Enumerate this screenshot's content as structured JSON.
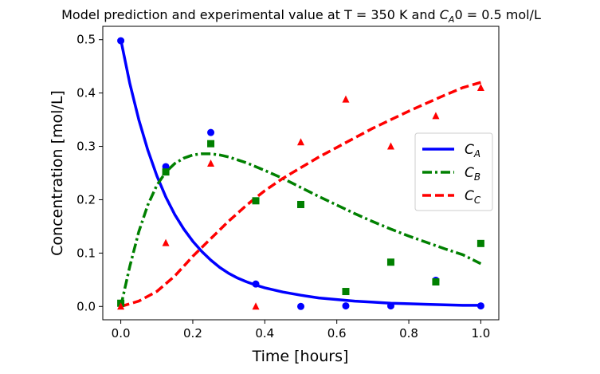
{
  "chart_data": {
    "type": "line",
    "title": "Model prediction and experimental value at T = 350 K and C_A0 = 0.5 mol/L",
    "title_parts": {
      "prefix": "Model prediction and experimental value at T = 350 K and ",
      "symbol": "C",
      "subscript": "A",
      "suffix": "0 = 0.5 mol/L"
    },
    "xlabel": "Time [hours]",
    "ylabel": "Concentration [mol/L]",
    "xlim": [
      -0.05,
      1.05
    ],
    "ylim": [
      -0.025,
      0.525
    ],
    "xticks": [
      0.0,
      0.2,
      0.4,
      0.6,
      0.8,
      1.0
    ],
    "xtick_labels": [
      "0.0",
      "0.2",
      "0.4",
      "0.6",
      "0.8",
      "1.0"
    ],
    "yticks": [
      0.0,
      0.1,
      0.2,
      0.3,
      0.4,
      0.5
    ],
    "ytick_labels": [
      "0.0",
      "0.1",
      "0.2",
      "0.3",
      "0.4",
      "0.5"
    ],
    "grid": false,
    "legend_position": "center-right",
    "model_series": [
      {
        "name": "C_A",
        "symbol": "C",
        "subscript": "A",
        "color": "#0000ff",
        "dash": "solid",
        "x": [
          0.0,
          0.025,
          0.05,
          0.075,
          0.1,
          0.125,
          0.15,
          0.175,
          0.2,
          0.225,
          0.25,
          0.275,
          0.3,
          0.325,
          0.35,
          0.375,
          0.4,
          0.45,
          0.5,
          0.55,
          0.6,
          0.65,
          0.7,
          0.75,
          0.8,
          0.85,
          0.9,
          0.95,
          1.0
        ],
        "y": [
          0.5,
          0.418,
          0.35,
          0.293,
          0.245,
          0.205,
          0.172,
          0.145,
          0.122,
          0.103,
          0.087,
          0.073,
          0.062,
          0.053,
          0.046,
          0.04,
          0.035,
          0.027,
          0.021,
          0.016,
          0.013,
          0.01,
          0.008,
          0.006,
          0.005,
          0.004,
          0.003,
          0.002,
          0.002
        ]
      },
      {
        "name": "C_B",
        "symbol": "C",
        "subscript": "B",
        "color": "#008000",
        "dash": "dashdot",
        "x": [
          0.0,
          0.025,
          0.05,
          0.075,
          0.1,
          0.125,
          0.15,
          0.175,
          0.2,
          0.225,
          0.25,
          0.275,
          0.3,
          0.35,
          0.4,
          0.45,
          0.5,
          0.55,
          0.6,
          0.65,
          0.7,
          0.75,
          0.8,
          0.85,
          0.9,
          0.95,
          1.0
        ],
        "y": [
          0.0,
          0.075,
          0.14,
          0.19,
          0.227,
          0.252,
          0.268,
          0.278,
          0.284,
          0.286,
          0.286,
          0.284,
          0.28,
          0.269,
          0.255,
          0.24,
          0.223,
          0.206,
          0.19,
          0.174,
          0.159,
          0.145,
          0.132,
          0.12,
          0.108,
          0.097,
          0.08
        ]
      },
      {
        "name": "C_C",
        "symbol": "C",
        "subscript": "C",
        "color": "#ff0000",
        "dash": "dashed",
        "x": [
          0.0,
          0.05,
          0.1,
          0.15,
          0.2,
          0.25,
          0.3,
          0.35,
          0.4,
          0.45,
          0.5,
          0.55,
          0.6,
          0.65,
          0.7,
          0.75,
          0.8,
          0.85,
          0.9,
          0.95,
          1.0
        ],
        "y": [
          0.0,
          0.01,
          0.028,
          0.057,
          0.094,
          0.127,
          0.16,
          0.19,
          0.217,
          0.24,
          0.26,
          0.28,
          0.298,
          0.316,
          0.334,
          0.35,
          0.366,
          0.381,
          0.396,
          0.41,
          0.42
        ]
      }
    ],
    "experimental_series": [
      {
        "name": "C_A",
        "marker": "circle",
        "color": "#0000ff",
        "x": [
          0.0,
          0.125,
          0.25,
          0.375,
          0.5,
          0.625,
          0.75,
          0.875,
          1.0
        ],
        "y": [
          0.498,
          0.262,
          0.326,
          0.042,
          0.0,
          0.001,
          0.001,
          0.049,
          0.001
        ]
      },
      {
        "name": "C_B",
        "marker": "square",
        "color": "#008000",
        "x": [
          0.0,
          0.125,
          0.25,
          0.375,
          0.5,
          0.625,
          0.75,
          0.875,
          1.0
        ],
        "y": [
          0.006,
          0.252,
          0.305,
          0.198,
          0.191,
          0.028,
          0.083,
          0.046,
          0.118
        ]
      },
      {
        "name": "C_C",
        "marker": "triangle",
        "color": "#ff0000",
        "x": [
          0.0,
          0.125,
          0.25,
          0.375,
          0.5,
          0.625,
          0.75,
          0.875,
          1.0
        ],
        "y": [
          0.0,
          0.119,
          0.268,
          0.0,
          0.308,
          0.388,
          0.3,
          0.357,
          0.41
        ]
      }
    ]
  }
}
